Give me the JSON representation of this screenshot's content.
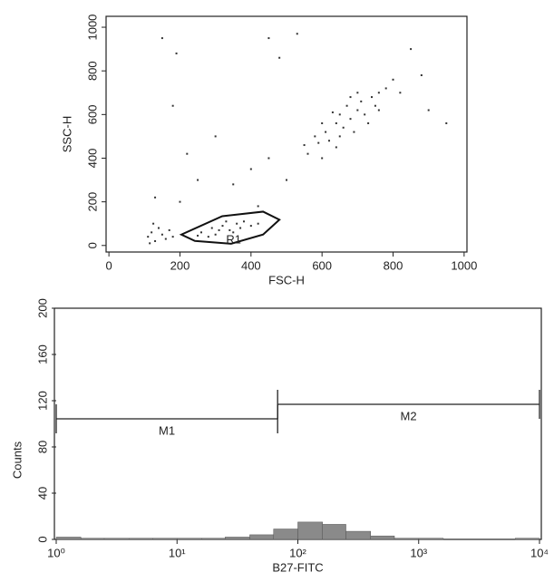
{
  "chart_data": [
    {
      "type": "scatter",
      "xlabel": "FSC-H",
      "ylabel": "SSC-H",
      "color": "#333333",
      "xlim": [
        -8,
        1008
      ],
      "xticks": [
        0,
        200,
        400,
        600,
        800,
        1000
      ],
      "ylim": [
        -30,
        1050
      ],
      "yticks": [
        0,
        200,
        400,
        600,
        800,
        1000
      ],
      "x": [
        560,
        590,
        610,
        620,
        640,
        650,
        660,
        680,
        700,
        710,
        720,
        740,
        750,
        760,
        780,
        600,
        630,
        670,
        690,
        730,
        580,
        550,
        800,
        820,
        700,
        650,
        640,
        600,
        760,
        680,
        260,
        290,
        320,
        340,
        360,
        380,
        300,
        350,
        400,
        420,
        280,
        330,
        370,
        250,
        310,
        110,
        120,
        130,
        140,
        150,
        115,
        125,
        160,
        170,
        180,
        200,
        250,
        350,
        400,
        450,
        300,
        150,
        450,
        180,
        220,
        500,
        850,
        900,
        950,
        480,
        530,
        880,
        420,
        130,
        190
      ],
      "y": [
        420,
        470,
        520,
        480,
        560,
        600,
        540,
        580,
        620,
        660,
        600,
        680,
        640,
        700,
        720,
        560,
        610,
        640,
        520,
        560,
        500,
        460,
        760,
        700,
        700,
        500,
        450,
        400,
        620,
        680,
        60,
        80,
        90,
        70,
        100,
        110,
        50,
        60,
        90,
        100,
        40,
        110,
        80,
        45,
        70,
        40,
        60,
        20,
        80,
        50,
        10,
        100,
        30,
        70,
        40,
        200,
        300,
        280,
        350,
        400,
        500,
        950,
        950,
        640,
        420,
        300,
        900,
        620,
        560,
        860,
        970,
        780,
        180,
        220,
        880
      ],
      "gate": {
        "label": "R1",
        "x": [
          204,
          319,
          434,
          480,
          434,
          344,
          242
        ],
        "y": [
          50,
          134,
          155,
          118,
          50,
          8,
          21
        ]
      }
    },
    {
      "type": "histogram",
      "xlabel": "B27-FITC",
      "ylabel": "Counts",
      "color": "#8a8a8a",
      "log_x": true,
      "xlim": [
        1,
        10000
      ],
      "xticks": [
        {
          "value": 1,
          "label": "10⁰"
        },
        {
          "value": 10,
          "label": "10¹"
        },
        {
          "value": 100,
          "label": "10²"
        },
        {
          "value": 1000,
          "label": "10³"
        },
        {
          "value": 10000,
          "label": "10⁴"
        }
      ],
      "ylim": [
        0,
        200
      ],
      "yticks": [
        0,
        40,
        80,
        120,
        160,
        200
      ],
      "bins": [
        1,
        1.6,
        2.5,
        4,
        6.3,
        10,
        16,
        25,
        40,
        63,
        100,
        160,
        250,
        400,
        630,
        1000,
        1600,
        2500,
        4000,
        6300,
        10000
      ],
      "counts": [
        2,
        1,
        1,
        1,
        1,
        1,
        1,
        2,
        4,
        9,
        15,
        13,
        7,
        3,
        1,
        1,
        0,
        0,
        0,
        1
      ],
      "markers": [
        {
          "label": "M1",
          "range": [
            1,
            68
          ]
        },
        {
          "label": "M2",
          "range": [
            68,
            10000
          ]
        }
      ]
    }
  ]
}
